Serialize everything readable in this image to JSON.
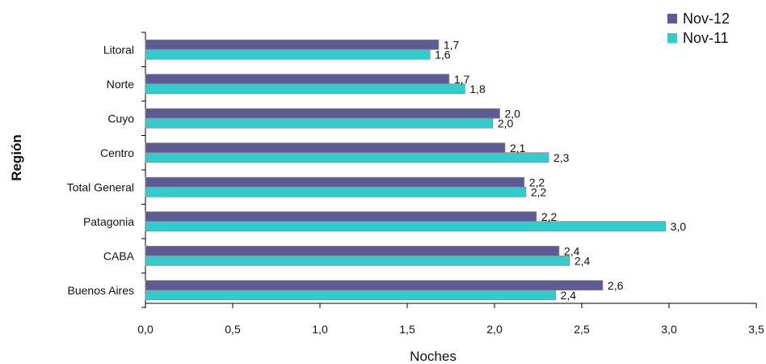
{
  "chart_data": {
    "type": "bar",
    "orientation": "horizontal",
    "categories": [
      "Litoral",
      "Norte",
      "Cuyo",
      "Centro",
      "Total General",
      "Patagonia",
      "CABA",
      "Buenos Aires"
    ],
    "series": [
      {
        "name": "Nov-12",
        "color": "#5c5b94",
        "values": [
          1.68,
          1.74,
          2.03,
          2.06,
          2.17,
          2.24,
          2.37,
          2.62
        ],
        "labels": [
          "1,7",
          "1,7",
          "2,0",
          "2,1",
          "2,2",
          "2,2",
          "2,4",
          "2,6"
        ]
      },
      {
        "name": "Nov-11",
        "color": "#33cccc",
        "values": [
          1.63,
          1.83,
          1.99,
          2.31,
          2.18,
          2.98,
          2.43,
          2.35
        ],
        "labels": [
          "1,6",
          "1,8",
          "2,0",
          "2,3",
          "2,2",
          "3,0",
          "2,4",
          "2,4"
        ]
      }
    ],
    "xlabel": "Noches",
    "ylabel": "Región",
    "xlim": [
      0,
      3.5
    ],
    "xticks": [
      0,
      0.5,
      1.0,
      1.5,
      2.0,
      2.5,
      3.0,
      3.5
    ],
    "xtick_labels": [
      "0,0",
      "0,5",
      "1,0",
      "1,5",
      "2,0",
      "2,5",
      "3,0",
      "3,5"
    ],
    "grid": false,
    "legend_position": "top-right"
  }
}
